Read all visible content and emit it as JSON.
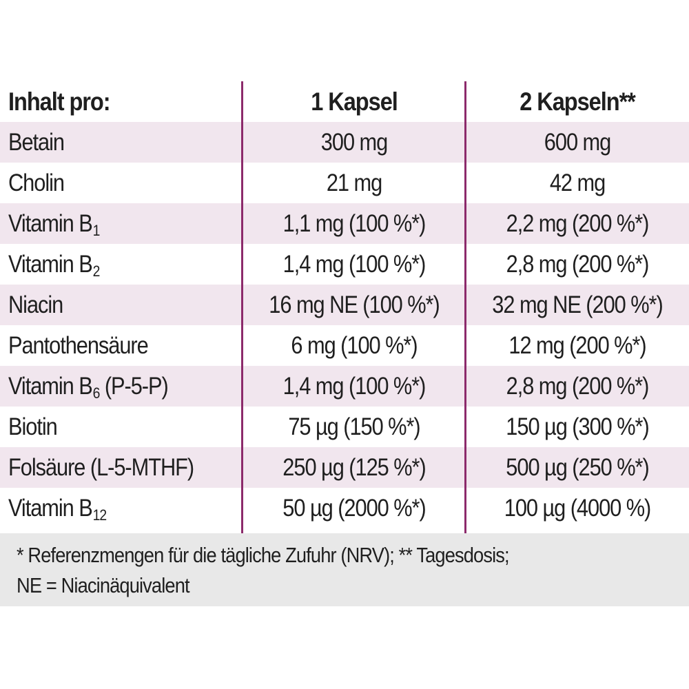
{
  "header": {
    "label": "Inhalt pro:",
    "col1": "1 Kapsel",
    "col2": "2 Kapseln**"
  },
  "rows": [
    {
      "name": "Betain",
      "sub": "",
      "suffix": "",
      "v1": "300 mg",
      "v2": "600 mg"
    },
    {
      "name": "Cholin",
      "sub": "",
      "suffix": "",
      "v1": "21 mg",
      "v2": "42 mg"
    },
    {
      "name": "Vitamin B",
      "sub": "1",
      "suffix": "",
      "v1": "1,1 mg (100 %*)",
      "v2": "2,2 mg (200 %*)"
    },
    {
      "name": "Vitamin B",
      "sub": "2",
      "suffix": "",
      "v1": "1,4 mg (100 %*)",
      "v2": "2,8 mg (200 %*)"
    },
    {
      "name": "Niacin",
      "sub": "",
      "suffix": "",
      "v1": "16 mg NE (100 %*)",
      "v2": "32 mg NE (200 %*)"
    },
    {
      "name": "Pantothensäure",
      "sub": "",
      "suffix": "",
      "v1": "6 mg (100 %*)",
      "v2": "12 mg (200 %*)"
    },
    {
      "name": "Vitamin B",
      "sub": "6",
      "suffix": " (P-5-P)",
      "v1": "1,4 mg (100 %*)",
      "v2": "2,8 mg (200 %*)"
    },
    {
      "name": "Biotin",
      "sub": "",
      "suffix": "",
      "v1": "75 µg (150 %*)",
      "v2": "150 µg (300 %*)"
    },
    {
      "name": "Folsäure (L-5-MTHF)",
      "sub": "",
      "suffix": "",
      "v1": "250 µg (125 %*)",
      "v2": "500 µg (250 %*)"
    },
    {
      "name": "Vitamin B",
      "sub": "12",
      "suffix": "",
      "v1": "50 µg (2000 %*)",
      "v2": "100 µg (4000 %)"
    }
  ],
  "footer": {
    "line1": "* Referenzmengen für die tägliche Zufuhr (NRV); ** Tagesdosis;",
    "line2": "NE = Niacinäquivalent"
  },
  "colors": {
    "row_shade": "#f1e6ee",
    "divider": "#8c2a6b",
    "footer_bg": "#e8e8e8",
    "text": "#1f1f1f"
  }
}
